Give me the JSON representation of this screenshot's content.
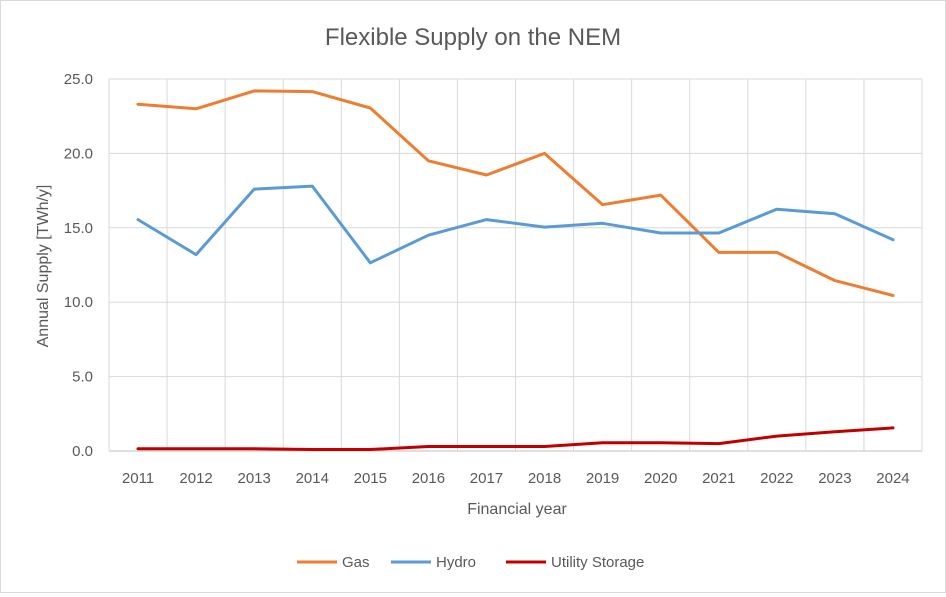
{
  "chart_data": {
    "type": "line",
    "title": "Flexible Supply on the NEM",
    "xlabel": "Financial year",
    "ylabel": "Annual Supply [TWh/y]",
    "categories": [
      "2011",
      "2012",
      "2013",
      "2014",
      "2015",
      "2016",
      "2017",
      "2018",
      "2019",
      "2020",
      "2021",
      "2022",
      "2023",
      "2024"
    ],
    "ylim": [
      0,
      25
    ],
    "ytick_labels": [
      "0.0",
      "5.0",
      "10.0",
      "15.0",
      "20.0",
      "25.0"
    ],
    "grid": true,
    "legend_position": "bottom",
    "series": [
      {
        "name": "Gas",
        "color": "#ED7D31",
        "values": [
          23.3,
          23.0,
          24.2,
          24.15,
          23.05,
          19.5,
          18.55,
          20.0,
          16.55,
          17.2,
          13.35,
          13.35,
          11.45,
          10.45
        ]
      },
      {
        "name": "Hydro",
        "color": "#5B9BD5",
        "values": [
          15.55,
          13.2,
          17.6,
          17.8,
          12.65,
          14.5,
          15.55,
          15.05,
          15.3,
          14.65,
          14.65,
          16.25,
          15.95,
          14.2
        ]
      },
      {
        "name": "Utility Storage",
        "color": "#C00000",
        "values": [
          0.15,
          0.15,
          0.15,
          0.1,
          0.1,
          0.3,
          0.3,
          0.3,
          0.55,
          0.55,
          0.5,
          1.0,
          1.3,
          1.55
        ]
      }
    ]
  }
}
